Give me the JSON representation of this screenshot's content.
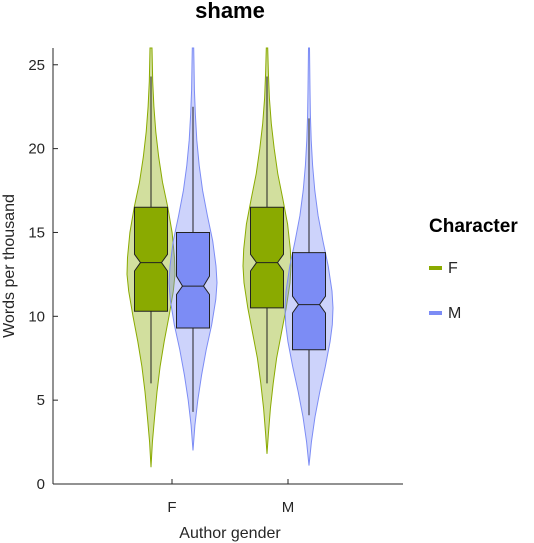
{
  "chart_data": {
    "type": "violin-box",
    "title": "shame",
    "xlabel": "Author gender",
    "ylabel": "Words per thousand",
    "ylim": [
      0,
      26
    ],
    "yticks": [
      0,
      5,
      10,
      15,
      20,
      25
    ],
    "categories": [
      "F",
      "M"
    ],
    "legend": {
      "title": "Character",
      "placement": "right"
    },
    "series": [
      {
        "name": "F",
        "color": "#8aaa00",
        "groups": [
          {
            "category": "F",
            "violin_min": 1.0,
            "violin_max": 26,
            "whisker_low": 6.0,
            "q1": 10.3,
            "median": 13.2,
            "q3": 16.5,
            "whisker_high": 24.3,
            "notch_low": 12.7,
            "notch_high": 13.7,
            "density": [
              [
                1.0,
                0
              ],
              [
                2.5,
                0.06
              ],
              [
                4,
                0.15
              ],
              [
                5.5,
                0.25
              ],
              [
                7,
                0.38
              ],
              [
                8.5,
                0.55
              ],
              [
                10,
                0.75
              ],
              [
                11.5,
                0.93
              ],
              [
                12.5,
                1.0
              ],
              [
                13.5,
                0.98
              ],
              [
                15,
                0.88
              ],
              [
                16.5,
                0.7
              ],
              [
                18,
                0.48
              ],
              [
                19.5,
                0.32
              ],
              [
                21,
                0.2
              ],
              [
                22.5,
                0.12
              ],
              [
                24,
                0.07
              ],
              [
                26,
                0.04
              ]
            ]
          },
          {
            "category": "M",
            "violin_min": 1.8,
            "violin_max": 26,
            "whisker_low": 6.0,
            "q1": 10.5,
            "median": 13.2,
            "q3": 16.5,
            "whisker_high": 24.3,
            "notch_low": 12.7,
            "notch_high": 13.7,
            "density": [
              [
                1.8,
                0
              ],
              [
                3,
                0.06
              ],
              [
                4.5,
                0.14
              ],
              [
                6,
                0.26
              ],
              [
                7.5,
                0.4
              ],
              [
                9,
                0.6
              ],
              [
                10.5,
                0.8
              ],
              [
                12,
                0.96
              ],
              [
                13,
                1.0
              ],
              [
                14,
                0.97
              ],
              [
                15.5,
                0.86
              ],
              [
                17,
                0.66
              ],
              [
                18.5,
                0.45
              ],
              [
                20,
                0.3
              ],
              [
                21.5,
                0.18
              ],
              [
                23,
                0.1
              ],
              [
                24.5,
                0.06
              ],
              [
                26,
                0.03
              ]
            ]
          }
        ]
      },
      {
        "name": "M",
        "color": "#7c8cf5",
        "groups": [
          {
            "category": "F",
            "violin_min": 2.0,
            "violin_max": 26,
            "whisker_low": 4.3,
            "q1": 9.3,
            "median": 11.8,
            "q3": 15.0,
            "whisker_high": 22.5,
            "notch_low": 11.3,
            "notch_high": 12.4,
            "density": [
              [
                2.0,
                0
              ],
              [
                3.5,
                0.08
              ],
              [
                5,
                0.2
              ],
              [
                6.5,
                0.36
              ],
              [
                8,
                0.55
              ],
              [
                9.5,
                0.78
              ],
              [
                11,
                0.95
              ],
              [
                12,
                1.0
              ],
              [
                13,
                0.96
              ],
              [
                14.5,
                0.82
              ],
              [
                16,
                0.6
              ],
              [
                17.5,
                0.4
              ],
              [
                19,
                0.26
              ],
              [
                20.5,
                0.16
              ],
              [
                22,
                0.1
              ],
              [
                23.5,
                0.06
              ],
              [
                25,
                0.04
              ],
              [
                26,
                0.03
              ]
            ]
          },
          {
            "category": "M",
            "violin_min": 1.1,
            "violin_max": 26,
            "whisker_low": 4.1,
            "q1": 8.0,
            "median": 10.7,
            "q3": 13.8,
            "whisker_high": 21.8,
            "notch_low": 10.2,
            "notch_high": 11.2,
            "density": [
              [
                1.1,
                0
              ],
              [
                2.5,
                0.1
              ],
              [
                4,
                0.25
              ],
              [
                5.5,
                0.45
              ],
              [
                7,
                0.68
              ],
              [
                8.5,
                0.88
              ],
              [
                9.5,
                0.97
              ],
              [
                10.5,
                1.0
              ],
              [
                11.5,
                0.96
              ],
              [
                13,
                0.8
              ],
              [
                14.5,
                0.58
              ],
              [
                16,
                0.38
              ],
              [
                17.5,
                0.24
              ],
              [
                19,
                0.15
              ],
              [
                20.5,
                0.09
              ],
              [
                22,
                0.06
              ],
              [
                23.5,
                0.04
              ],
              [
                26,
                0.02
              ]
            ]
          }
        ]
      }
    ]
  }
}
